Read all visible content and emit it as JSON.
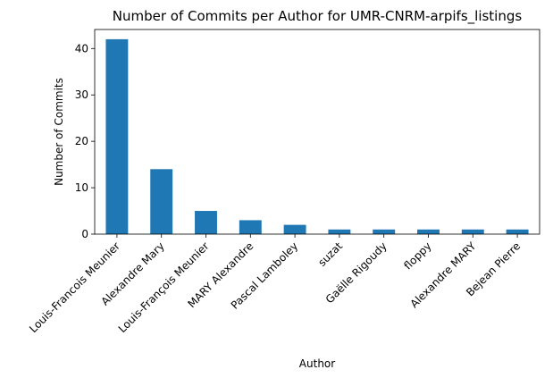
{
  "chart_data": {
    "type": "bar",
    "title": "Number of Commits per Author for UMR-CNRM-arpifs_listings",
    "xlabel": "Author",
    "ylabel": "Number of Commits",
    "categories": [
      "Louis-Francois Meunier",
      "Alexandre Mary",
      "Louis-François Meunier",
      "MARY Alexandre",
      "Pascal Lamboley",
      "suzat",
      "Gaëlle Rigoudy",
      "floppy",
      "Alexandre MARY",
      "Bejean Pierre"
    ],
    "values": [
      42,
      14,
      5,
      3,
      2,
      1,
      1,
      1,
      1,
      1
    ],
    "ylim": [
      0,
      44.1
    ],
    "yticks": [
      0,
      10,
      20,
      30,
      40
    ],
    "bar_color": "#1f77b4",
    "grid": false,
    "legend": "none"
  }
}
